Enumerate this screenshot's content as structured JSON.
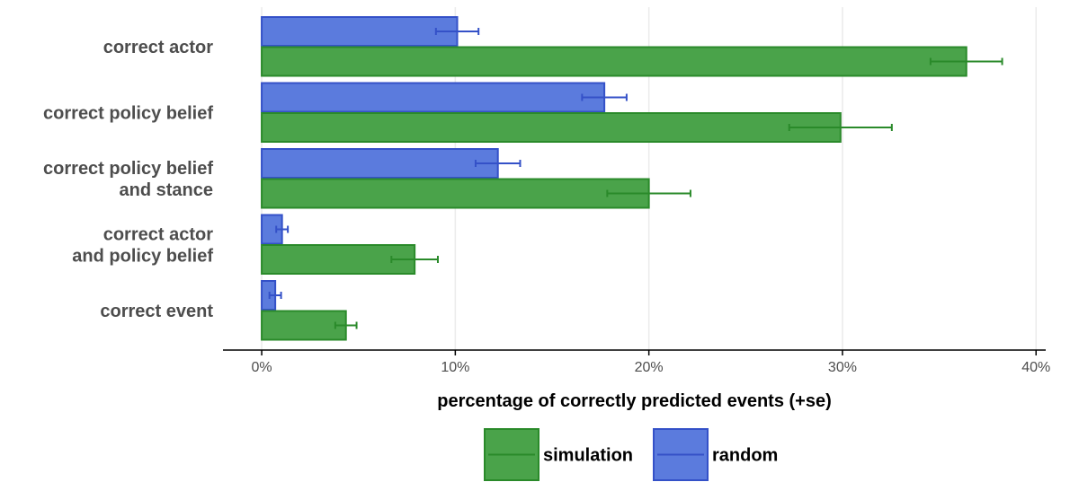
{
  "chart_data": {
    "type": "bar",
    "orientation": "horizontal",
    "categories": [
      [
        "correct actor"
      ],
      [
        "correct policy belief"
      ],
      [
        "correct policy belief",
        "and stance"
      ],
      [
        "correct actor",
        "and policy belief"
      ],
      [
        "correct event"
      ]
    ],
    "series": [
      {
        "name": "random",
        "color": "#5b7bdd",
        "stroke": "#3451c8",
        "values": [
          10.1,
          17.7,
          12.2,
          1.05,
          0.7
        ],
        "se": [
          1.1,
          1.15,
          1.15,
          0.3,
          0.3
        ]
      },
      {
        "name": "simulation",
        "color": "#4aa34a",
        "stroke": "#2a8a2a",
        "values": [
          36.4,
          29.9,
          20.0,
          7.9,
          4.35
        ],
        "se": [
          1.85,
          2.65,
          2.15,
          1.2,
          0.55
        ]
      }
    ],
    "xlim": [
      -2,
      40.5
    ],
    "xticks": [
      0,
      10,
      20,
      30,
      40
    ],
    "xtick_labels": [
      "0%",
      "10%",
      "20%",
      "30%",
      "40%"
    ],
    "xlabel": "percentage of correctly predicted events (+se)",
    "ylabel": "",
    "grid": true,
    "legend": {
      "position": "bottom",
      "entries": [
        "simulation",
        "random"
      ]
    }
  }
}
